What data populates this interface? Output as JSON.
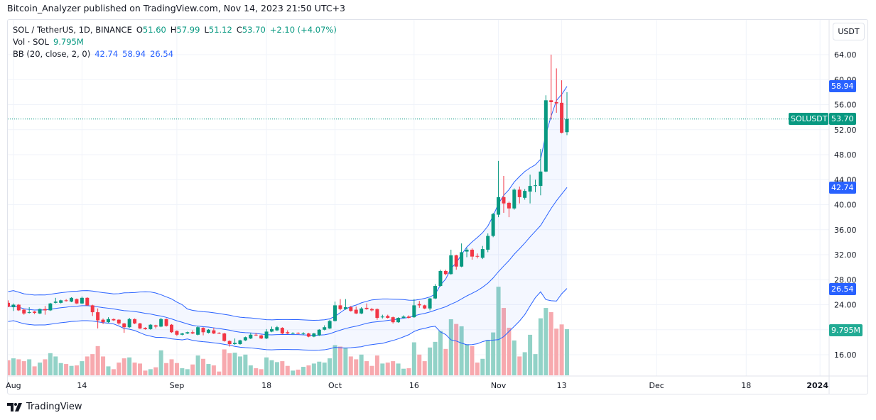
{
  "header": {
    "published": "Bitcoin_Analyzer published on TradingView.com, Nov 14, 2023 21:50 UTC+3"
  },
  "legend": {
    "symbol": "SOL / TetherUS, 1D, BINANCE",
    "o_label": "O",
    "o": "51.60",
    "h_label": "H",
    "h": "57.99",
    "l_label": "L",
    "l": "51.12",
    "c_label": "C",
    "c": "53.70",
    "change": "+2.10 (+4.07%)",
    "vol_label": "Vol · SOL",
    "vol": "9.795M",
    "bb_label": "BB (20, close, 2, 0)",
    "bb_basis": "42.74",
    "bb_upper": "58.94",
    "bb_lower": "26.54"
  },
  "price_axis": {
    "currency": "USDT"
  },
  "labels": {
    "symbol_tag": "SOLUSDT",
    "last_price": "53.70",
    "bb_upper": "58.94",
    "bb_basis": "42.74",
    "bb_lower": "26.54",
    "volume": "9.795M"
  },
  "branding": {
    "logo_text": "TradingView"
  },
  "colors": {
    "up": "#089981",
    "down": "#f23645",
    "up_volume": "#92d2c7",
    "down_volume": "#f7a9ae",
    "bands": "#2962ff",
    "band_fill": "#2962ff",
    "label_blue": "#2962ff"
  },
  "chart_data": {
    "type": "candlestick",
    "symbol": "SOLUSDT",
    "interval": "1D",
    "ylim": [
      14,
      66
    ],
    "y_ticks": [
      "64.00",
      "60.00",
      "56.00",
      "52.00",
      "48.00",
      "44.00",
      "40.00",
      "36.00",
      "32.00",
      "28.00",
      "24.00",
      "16.00"
    ],
    "x_ticks": [
      {
        "label": "Aug",
        "date": "2023-08-01"
      },
      {
        "label": "14",
        "date": "2023-08-14"
      },
      {
        "label": "Sep",
        "date": "2023-09-01"
      },
      {
        "label": "18",
        "date": "2023-09-18"
      },
      {
        "label": "Oct",
        "date": "2023-10-01"
      },
      {
        "label": "16",
        "date": "2023-10-16"
      },
      {
        "label": "Nov",
        "date": "2023-11-01"
      },
      {
        "label": "13",
        "date": "2023-11-13"
      },
      {
        "label": "Dec",
        "date": "2023-12-01"
      },
      {
        "label": "18",
        "date": "2023-12-18"
      },
      {
        "label": "2024",
        "date": "2024-01-01"
      }
    ],
    "grid": true,
    "indicators": [
      "Volume",
      "Bollinger Bands (20, close, 2, 0)"
    ],
    "candles_columns": [
      "date",
      "open",
      "high",
      "low",
      "close",
      "volume_millions"
    ],
    "candles": [
      [
        "2023-07-31",
        24.3,
        24.7,
        23.6,
        23.7,
        3.2
      ],
      [
        "2023-08-01",
        23.6,
        24.2,
        23.0,
        24.0,
        3.6
      ],
      [
        "2023-08-02",
        24.0,
        24.1,
        23.0,
        23.1,
        3.4
      ],
      [
        "2023-08-03",
        23.2,
        23.3,
        22.4,
        22.6,
        3.0
      ],
      [
        "2023-08-04",
        22.7,
        23.6,
        22.6,
        22.8,
        3.4
      ],
      [
        "2023-08-05",
        22.9,
        23.0,
        22.5,
        22.7,
        1.9
      ],
      [
        "2023-08-06",
        22.6,
        23.4,
        22.5,
        23.3,
        2.7
      ],
      [
        "2023-08-07",
        23.3,
        23.8,
        22.4,
        23.1,
        3.4
      ],
      [
        "2023-08-08",
        23.1,
        24.3,
        23.0,
        24.2,
        4.7
      ],
      [
        "2023-08-09",
        24.3,
        25.1,
        24.2,
        24.5,
        4.0
      ],
      [
        "2023-08-10",
        24.3,
        24.8,
        24.2,
        24.7,
        2.6
      ],
      [
        "2023-08-11",
        24.7,
        24.9,
        24.5,
        24.6,
        2.4
      ],
      [
        "2023-08-12",
        24.5,
        25.2,
        24.4,
        25.1,
        2.0
      ],
      [
        "2023-08-13",
        24.9,
        25.0,
        24.1,
        24.2,
        2.1
      ],
      [
        "2023-08-14",
        24.2,
        25.3,
        24.1,
        25.1,
        3.0
      ],
      [
        "2023-08-15",
        25.1,
        25.2,
        23.8,
        23.9,
        4.0
      ],
      [
        "2023-08-16",
        23.9,
        24.0,
        22.2,
        22.8,
        4.5
      ],
      [
        "2023-08-17",
        22.8,
        23.4,
        20.2,
        21.5,
        6.2
      ],
      [
        "2023-08-18",
        21.6,
        21.8,
        20.9,
        21.2,
        4.0
      ],
      [
        "2023-08-19",
        21.2,
        22.0,
        21.1,
        21.7,
        1.9
      ],
      [
        "2023-08-20",
        21.7,
        21.8,
        21.4,
        21.5,
        1.3
      ],
      [
        "2023-08-21",
        21.6,
        21.7,
        20.8,
        21.0,
        2.7
      ],
      [
        "2023-08-22",
        21.0,
        21.1,
        19.5,
        20.4,
        3.6
      ],
      [
        "2023-08-23",
        20.4,
        21.9,
        20.3,
        21.7,
        3.8
      ],
      [
        "2023-08-24",
        21.7,
        21.8,
        20.9,
        21.0,
        2.7
      ],
      [
        "2023-08-25",
        21.0,
        21.1,
        20.1,
        20.2,
        2.5
      ],
      [
        "2023-08-26",
        20.3,
        20.4,
        20.0,
        20.1,
        1.0
      ],
      [
        "2023-08-27",
        20.1,
        20.9,
        20.0,
        20.8,
        1.3
      ],
      [
        "2023-08-28",
        20.7,
        20.8,
        20.2,
        20.5,
        1.7
      ],
      [
        "2023-08-29",
        20.5,
        21.9,
        20.4,
        21.7,
        5.3
      ],
      [
        "2023-08-30",
        21.7,
        21.8,
        20.5,
        20.6,
        2.6
      ],
      [
        "2023-08-31",
        20.8,
        20.9,
        19.5,
        19.6,
        3.4
      ],
      [
        "2023-09-01",
        19.8,
        19.9,
        19.0,
        19.2,
        2.6
      ],
      [
        "2023-09-02",
        19.2,
        19.5,
        19.1,
        19.4,
        1.5
      ],
      [
        "2023-09-03",
        19.4,
        19.7,
        19.3,
        19.6,
        1.3
      ],
      [
        "2023-09-04",
        19.6,
        19.9,
        19.3,
        19.4,
        2.3
      ],
      [
        "2023-09-05",
        19.2,
        20.6,
        19.1,
        20.4,
        4.2
      ],
      [
        "2023-09-06",
        20.3,
        20.4,
        19.1,
        19.6,
        3.5
      ],
      [
        "2023-09-07",
        19.5,
        20.1,
        19.4,
        20.0,
        2.4
      ],
      [
        "2023-09-08",
        19.9,
        20.3,
        19.3,
        19.4,
        2.1
      ],
      [
        "2023-09-09",
        19.5,
        19.6,
        19.3,
        19.4,
        0.8
      ],
      [
        "2023-09-10",
        19.4,
        19.5,
        18.1,
        18.2,
        5.5
      ],
      [
        "2023-09-11",
        18.2,
        18.3,
        17.3,
        17.7,
        4.7
      ],
      [
        "2023-09-12",
        17.7,
        18.6,
        17.6,
        17.9,
        4.8
      ],
      [
        "2023-09-13",
        17.7,
        18.4,
        17.6,
        18.3,
        4.0
      ],
      [
        "2023-09-14",
        18.3,
        18.9,
        18.2,
        18.8,
        4.4
      ],
      [
        "2023-09-15",
        18.6,
        19.5,
        18.5,
        19.2,
        2.1
      ],
      [
        "2023-09-16",
        19.2,
        19.5,
        19.0,
        19.1,
        1.5
      ],
      [
        "2023-09-17",
        19.1,
        19.2,
        18.5,
        18.6,
        1.3
      ],
      [
        "2023-09-18",
        18.6,
        20.1,
        18.5,
        19.7,
        3.8
      ],
      [
        "2023-09-19",
        19.7,
        20.5,
        19.6,
        20.1,
        3.2
      ],
      [
        "2023-09-20",
        19.9,
        20.6,
        19.8,
        20.4,
        2.8
      ],
      [
        "2023-09-21",
        20.3,
        20.4,
        19.3,
        19.4,
        3.0
      ],
      [
        "2023-09-22",
        19.6,
        19.9,
        19.3,
        19.4,
        2.0
      ],
      [
        "2023-09-23",
        19.4,
        19.6,
        19.3,
        19.45,
        1.0
      ],
      [
        "2023-09-24",
        19.5,
        19.6,
        19.3,
        19.4,
        1.2
      ],
      [
        "2023-09-25",
        19.35,
        19.6,
        19.2,
        19.4,
        1.8
      ],
      [
        "2023-09-26",
        19.4,
        19.5,
        18.8,
        18.9,
        2.1
      ],
      [
        "2023-09-27",
        18.9,
        19.5,
        18.8,
        19.4,
        2.5
      ],
      [
        "2023-09-28",
        19.1,
        20.1,
        19.0,
        20.0,
        2.9
      ],
      [
        "2023-09-29",
        20.0,
        20.7,
        19.9,
        20.4,
        2.7
      ],
      [
        "2023-09-30",
        20.2,
        21.6,
        20.1,
        21.4,
        3.6
      ],
      [
        "2023-10-01",
        21.4,
        24.5,
        21.3,
        23.9,
        6.4
      ],
      [
        "2023-10-02",
        23.9,
        24.9,
        23.1,
        23.3,
        6.1
      ],
      [
        "2023-10-03",
        23.3,
        24.9,
        23.2,
        23.6,
        5.9
      ],
      [
        "2023-10-04",
        23.6,
        23.8,
        22.9,
        23.0,
        4.0
      ],
      [
        "2023-10-05",
        23.2,
        23.7,
        22.5,
        22.6,
        3.4
      ],
      [
        "2023-10-06",
        22.6,
        23.6,
        22.5,
        23.4,
        4.4
      ],
      [
        "2023-10-07",
        23.5,
        24.2,
        23.2,
        23.3,
        3.0
      ],
      [
        "2023-10-08",
        23.3,
        23.5,
        22.9,
        23.1,
        2.0
      ],
      [
        "2023-10-09",
        23.3,
        23.4,
        21.6,
        21.9,
        4.2
      ],
      [
        "2023-10-10",
        22.0,
        22.4,
        21.8,
        22.1,
        2.5
      ],
      [
        "2023-10-11",
        22.2,
        22.4,
        21.8,
        21.9,
        2.7
      ],
      [
        "2023-10-12",
        22.0,
        22.1,
        21.0,
        21.2,
        3.0
      ],
      [
        "2023-10-13",
        21.2,
        22.0,
        21.1,
        21.9,
        2.5
      ],
      [
        "2023-10-14",
        21.9,
        22.3,
        21.8,
        22.1,
        1.4
      ],
      [
        "2023-10-15",
        22.1,
        22.3,
        21.8,
        21.9,
        1.5
      ],
      [
        "2023-10-16",
        22.0,
        24.9,
        21.9,
        23.9,
        7.0
      ],
      [
        "2023-10-17",
        24.1,
        24.6,
        23.5,
        23.9,
        4.4
      ],
      [
        "2023-10-18",
        23.9,
        24.0,
        23.3,
        23.4,
        3.0
      ],
      [
        "2023-10-19",
        23.4,
        25.1,
        23.1,
        25.0,
        5.9
      ],
      [
        "2023-10-20",
        25.0,
        27.3,
        24.9,
        27.0,
        7.1
      ],
      [
        "2023-10-21",
        27.0,
        29.6,
        26.9,
        29.4,
        9.4
      ],
      [
        "2023-10-22",
        29.4,
        29.6,
        28.7,
        28.9,
        5.6
      ],
      [
        "2023-10-23",
        28.9,
        32.8,
        28.8,
        31.9,
        11.9
      ],
      [
        "2023-10-24",
        31.9,
        32.0,
        29.6,
        30.1,
        10.9
      ],
      [
        "2023-10-25",
        30.1,
        33.8,
        30.0,
        32.4,
        10.4
      ],
      [
        "2023-10-26",
        32.5,
        33.1,
        31.6,
        32.8,
        6.6
      ],
      [
        "2023-10-27",
        32.8,
        33.0,
        31.2,
        31.7,
        6.2
      ],
      [
        "2023-10-28",
        31.8,
        32.2,
        31.4,
        31.7,
        2.7
      ],
      [
        "2023-10-29",
        31.5,
        33.4,
        31.3,
        32.9,
        3.5
      ],
      [
        "2023-10-30",
        32.8,
        35.4,
        32.4,
        35.0,
        7.5
      ],
      [
        "2023-10-31",
        35.0,
        38.7,
        34.8,
        38.5,
        9.1
      ],
      [
        "2023-11-01",
        38.4,
        47.0,
        38.0,
        41.2,
        18.8
      ],
      [
        "2023-11-02",
        41.2,
        44.6,
        38.7,
        40.2,
        14.3
      ],
      [
        "2023-11-03",
        40.3,
        40.5,
        38.0,
        39.4,
        10.1
      ],
      [
        "2023-11-04",
        39.4,
        42.6,
        39.2,
        42.4,
        7.4
      ],
      [
        "2023-11-05",
        42.4,
        42.9,
        40.2,
        41.2,
        4.0
      ],
      [
        "2023-11-06",
        41.1,
        42.5,
        40.8,
        42.2,
        4.9
      ],
      [
        "2023-11-07",
        42.1,
        44.8,
        40.2,
        43.0,
        8.6
      ],
      [
        "2023-11-08",
        43.0,
        44.0,
        42.0,
        43.1,
        4.5
      ],
      [
        "2023-11-09",
        43.0,
        48.9,
        41.5,
        45.3,
        12.1
      ],
      [
        "2023-11-10",
        45.3,
        57.5,
        45.2,
        56.7,
        14.3
      ],
      [
        "2023-11-11",
        56.7,
        64.0,
        53.7,
        56.4,
        13.4
      ],
      [
        "2023-11-12",
        56.4,
        61.8,
        54.7,
        56.2,
        9.9
      ],
      [
        "2023-11-13",
        56.3,
        59.9,
        51.4,
        51.5,
        10.8
      ],
      [
        "2023-11-14",
        51.6,
        57.99,
        51.12,
        53.7,
        9.795
      ]
    ]
  }
}
